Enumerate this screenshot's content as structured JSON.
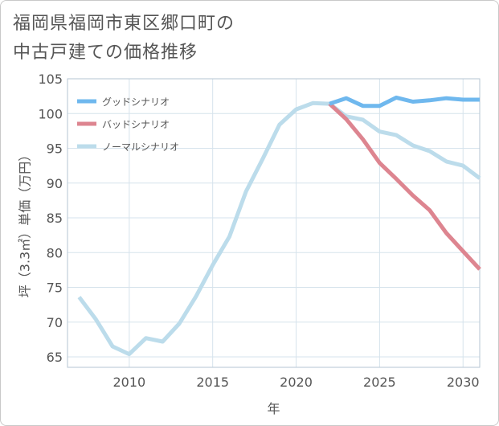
{
  "title_lines": [
    "福岡県福岡市東区郷口町の",
    "中古戸建ての価格推移"
  ],
  "chart_data": {
    "type": "line",
    "title": "福岡県福岡市東区郷口町の中古戸建ての価格推移",
    "xlabel": "年",
    "ylabel": "坪（3.3㎡）単価（万円）",
    "xlim": [
      2006.3,
      2031
    ],
    "ylim": [
      63.5,
      105
    ],
    "xticks": [
      2010,
      2015,
      2020,
      2025,
      2030
    ],
    "yticks": [
      65,
      70,
      75,
      80,
      85,
      90,
      95,
      100,
      105
    ],
    "grid": true,
    "legend_position": "top-left",
    "series": [
      {
        "name": "グッドシナリオ",
        "color": "#6fb8ee",
        "x": [
          2022,
          2023,
          2024,
          2025,
          2026,
          2027,
          2028,
          2029,
          2030,
          2031
        ],
        "y": [
          101.4,
          102.2,
          101.1,
          101.1,
          102.3,
          101.7,
          101.9,
          102.2,
          102.0,
          102.0
        ]
      },
      {
        "name": "バッドシナリオ",
        "color": "#dd8590",
        "x": [
          2022,
          2023,
          2024,
          2025,
          2026,
          2027,
          2028,
          2029,
          2030,
          2031
        ],
        "y": [
          101.4,
          99.2,
          96.3,
          92.9,
          90.6,
          88.2,
          86.1,
          82.8,
          80.2,
          77.6
        ]
      },
      {
        "name": "ノーマルシナリオ",
        "color": "#bcdceb",
        "x": [
          2007,
          2008,
          2009,
          2010,
          2011,
          2012,
          2013,
          2014,
          2015,
          2016,
          2017,
          2018,
          2019,
          2020,
          2021,
          2022,
          2023,
          2024,
          2025,
          2026,
          2027,
          2028,
          2029,
          2030,
          2031
        ],
        "y": [
          73.6,
          70.4,
          66.5,
          65.4,
          67.7,
          67.2,
          69.8,
          73.7,
          78.2,
          82.3,
          88.8,
          93.5,
          98.4,
          100.6,
          101.5,
          101.4,
          99.6,
          99.1,
          97.4,
          96.9,
          95.4,
          94.6,
          93.1,
          92.5,
          90.7
        ]
      }
    ]
  }
}
